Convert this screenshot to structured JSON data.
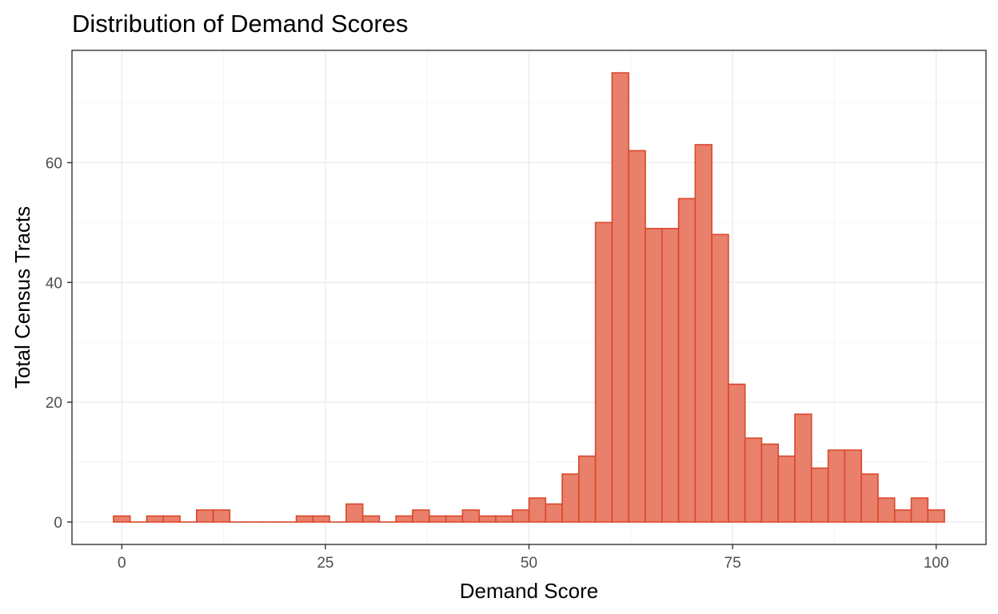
{
  "chart_data": {
    "type": "bar",
    "title": "Distribution of Demand Scores",
    "xlabel": "Demand Score",
    "ylabel": "Total Census Tracts",
    "bin_width": 2.04,
    "x": [
      0,
      2.04,
      4.08,
      6.12,
      8.16,
      10.2,
      12.24,
      14.29,
      16.33,
      18.37,
      20.41,
      22.45,
      24.49,
      26.53,
      28.57,
      30.61,
      32.65,
      34.69,
      36.73,
      38.78,
      40.82,
      42.86,
      44.9,
      46.94,
      48.98,
      51.02,
      53.06,
      55.1,
      57.14,
      59.18,
      61.22,
      63.27,
      65.31,
      67.35,
      69.39,
      71.43,
      73.47,
      75.51,
      77.55,
      79.59,
      81.63,
      83.67,
      85.71,
      87.76,
      89.8,
      91.84,
      93.88,
      95.92,
      97.96,
      100
    ],
    "values": [
      1,
      0,
      1,
      1,
      0,
      2,
      2,
      0,
      0,
      0,
      0,
      1,
      1,
      0,
      3,
      1,
      0,
      1,
      2,
      1,
      1,
      2,
      1,
      1,
      2,
      4,
      3,
      8,
      11,
      50,
      75,
      62,
      49,
      49,
      54,
      63,
      48,
      23,
      14,
      13,
      11,
      18,
      9,
      12,
      12,
      8,
      4,
      2,
      4,
      2
    ],
    "xlim": [
      -6.12,
      106.12
    ],
    "ylim": [
      -3.75,
      78.75
    ],
    "x_ticks": [
      0,
      25,
      50,
      75,
      100
    ],
    "x_tick_labels": [
      "0",
      "25",
      "50",
      "75",
      "100"
    ],
    "y_ticks": [
      0,
      20,
      40,
      60
    ],
    "y_tick_labels": [
      "0",
      "20",
      "40",
      "60"
    ],
    "grid": true,
    "legend": "none",
    "bar_fill": "#e8806b",
    "bar_stroke": "#d9482b"
  }
}
